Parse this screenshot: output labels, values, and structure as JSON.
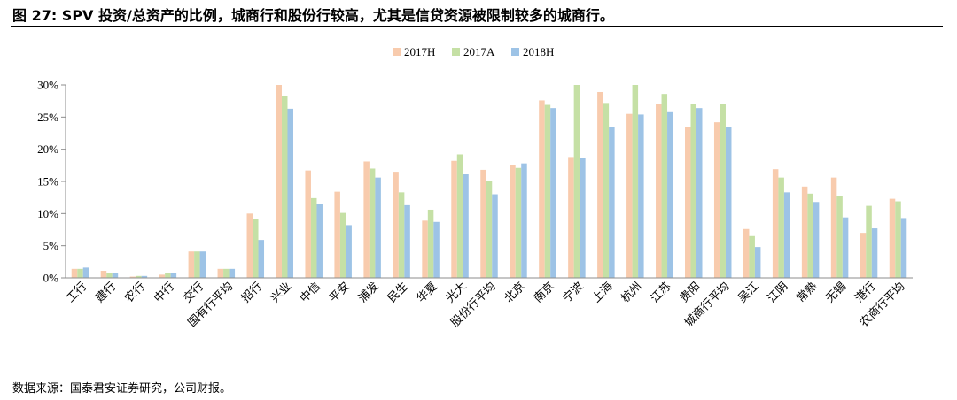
{
  "title": "图 27: SPV 投资/总资产的比例，城商行和股份行较高，尤其是信贷资源被限制较多的城商行。",
  "source": "数据来源：国泰君安证券研究，公司财报。",
  "chart_data": {
    "type": "bar",
    "categories": [
      "工行",
      "建行",
      "农行",
      "中行",
      "交行",
      "国有行平均",
      "招行",
      "兴业",
      "中信",
      "平安",
      "浦发",
      "民生",
      "华夏",
      "光大",
      "股份行平均",
      "北京",
      "南京",
      "宁波",
      "上海",
      "杭州",
      "江苏",
      "贵阳",
      "城商行平均",
      "吴江",
      "江阴",
      "常熟",
      "无锡",
      "港行",
      "农商行平均"
    ],
    "series": [
      {
        "name": "2017H",
        "color": "#F8CBAD",
        "values": [
          1.4,
          1.1,
          0.2,
          0.5,
          4.1,
          1.4,
          10.0,
          30.0,
          16.7,
          13.4,
          18.1,
          16.5,
          8.9,
          18.2,
          16.8,
          17.6,
          27.6,
          18.8,
          28.9,
          25.5,
          27.0,
          23.5,
          24.2,
          7.6,
          16.9,
          14.2,
          15.6,
          7.0,
          12.3
        ]
      },
      {
        "name": "2017A",
        "color": "#C5E0A5",
        "values": [
          1.4,
          0.8,
          0.3,
          0.7,
          4.1,
          1.4,
          9.2,
          28.3,
          12.4,
          10.1,
          17.0,
          13.3,
          10.6,
          19.2,
          15.1,
          17.1,
          26.9,
          30.0,
          27.2,
          30.0,
          28.6,
          27.0,
          27.1,
          6.5,
          15.6,
          13.1,
          12.7,
          11.2,
          11.9
        ]
      },
      {
        "name": "2018H",
        "color": "#9DC3E6",
        "values": [
          1.6,
          0.8,
          0.3,
          0.8,
          4.1,
          1.4,
          5.9,
          26.3,
          11.5,
          8.2,
          15.6,
          11.3,
          8.7,
          16.1,
          13.0,
          17.8,
          26.4,
          18.7,
          23.4,
          25.4,
          25.9,
          26.4,
          23.4,
          4.8,
          13.3,
          11.8,
          9.4,
          7.7,
          9.3
        ]
      }
    ],
    "y_ticks": [
      "0%",
      "5%",
      "10%",
      "15%",
      "20%",
      "25%",
      "30%"
    ],
    "ylim": [
      0,
      30
    ],
    "y_unit": "%",
    "legend_position": "top-center",
    "grid": false
  }
}
